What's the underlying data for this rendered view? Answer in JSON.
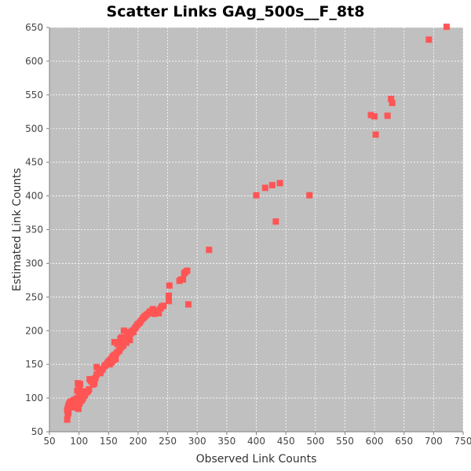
{
  "chart_data": {
    "type": "scatter",
    "title": "Scatter Links GAg_500s__F_8t8",
    "xlabel": "Observed Link Counts",
    "ylabel": "Estimated Link Counts",
    "xlim": [
      50,
      750
    ],
    "ylim": [
      50,
      650
    ],
    "xticks": [
      50,
      100,
      150,
      200,
      250,
      300,
      350,
      400,
      450,
      500,
      550,
      600,
      650,
      700,
      750
    ],
    "yticks": [
      50,
      100,
      150,
      200,
      250,
      300,
      350,
      400,
      450,
      500,
      550,
      600,
      650
    ],
    "grid": true,
    "legend": "none",
    "colors": {
      "plot_bg": "#c0c0c0",
      "grid": "#ffffff",
      "marker": "#ff5555"
    },
    "series": [
      {
        "points": [
          [
            80,
            68
          ],
          [
            81,
            75
          ],
          [
            82,
            78
          ],
          [
            80,
            82
          ],
          [
            81,
            85
          ],
          [
            82,
            88
          ],
          [
            83,
            90
          ],
          [
            84,
            92
          ],
          [
            85,
            93
          ],
          [
            86,
            95
          ],
          [
            88,
            94
          ],
          [
            90,
            96
          ],
          [
            92,
            97
          ],
          [
            95,
            99
          ],
          [
            98,
            100
          ],
          [
            100,
            102
          ],
          [
            102,
            104
          ],
          [
            104,
            106
          ],
          [
            106,
            108
          ],
          [
            108,
            110
          ],
          [
            97,
            88
          ],
          [
            99,
            90
          ],
          [
            101,
            92
          ],
          [
            100,
            95
          ],
          [
            103,
            96
          ],
          [
            98,
            122
          ],
          [
            100,
            118
          ],
          [
            102,
            121
          ],
          [
            101,
            114
          ],
          [
            97,
            111
          ],
          [
            90,
            86
          ],
          [
            93,
            88
          ],
          [
            96,
            91
          ],
          [
            99,
            84
          ],
          [
            105,
            97
          ],
          [
            107,
            100
          ],
          [
            110,
            104
          ],
          [
            112,
            108
          ],
          [
            115,
            110
          ],
          [
            117,
            113
          ],
          [
            118,
            128
          ],
          [
            120,
            126
          ],
          [
            122,
            124
          ],
          [
            124,
            120
          ],
          [
            126,
            122
          ],
          [
            128,
            130
          ],
          [
            130,
            135
          ],
          [
            130,
            146
          ],
          [
            133,
            140
          ],
          [
            136,
            137
          ],
          [
            138,
            141
          ],
          [
            140,
            143
          ],
          [
            143,
            147
          ],
          [
            145,
            149
          ],
          [
            148,
            152
          ],
          [
            150,
            154
          ],
          [
            152,
            156
          ],
          [
            155,
            159
          ],
          [
            157,
            162
          ],
          [
            160,
            164
          ],
          [
            152,
            150
          ],
          [
            155,
            153
          ],
          [
            158,
            156
          ],
          [
            162,
            158
          ],
          [
            163,
            166
          ],
          [
            165,
            168
          ],
          [
            168,
            170
          ],
          [
            170,
            174
          ],
          [
            172,
            176
          ],
          [
            175,
            178
          ],
          [
            160,
            183
          ],
          [
            165,
            180
          ],
          [
            170,
            188
          ],
          [
            172,
            190
          ],
          [
            175,
            185
          ],
          [
            178,
            187
          ],
          [
            180,
            190
          ],
          [
            182,
            192
          ],
          [
            185,
            193
          ],
          [
            188,
            196
          ],
          [
            176,
            200
          ],
          [
            180,
            182
          ],
          [
            183,
            198
          ],
          [
            186,
            186
          ],
          [
            190,
            200
          ],
          [
            192,
            198
          ],
          [
            194,
            203
          ],
          [
            196,
            205
          ],
          [
            198,
            208
          ],
          [
            200,
            210
          ],
          [
            203,
            212
          ],
          [
            205,
            215
          ],
          [
            208,
            218
          ],
          [
            210,
            220
          ],
          [
            212,
            222
          ],
          [
            215,
            224
          ],
          [
            218,
            226
          ],
          [
            220,
            228
          ],
          [
            222,
            229
          ],
          [
            225,
            232
          ],
          [
            228,
            225
          ],
          [
            230,
            230
          ],
          [
            233,
            228
          ],
          [
            235,
            226
          ],
          [
            238,
            233
          ],
          [
            240,
            236
          ],
          [
            243,
            237
          ],
          [
            252,
            244
          ],
          [
            252,
            252
          ],
          [
            253,
            267
          ],
          [
            270,
            274
          ],
          [
            273,
            276
          ],
          [
            276,
            276
          ],
          [
            278,
            285
          ],
          [
            280,
            287
          ],
          [
            283,
            289
          ],
          [
            285,
            239
          ],
          [
            320,
            320
          ],
          [
            400,
            401
          ],
          [
            415,
            412
          ],
          [
            427,
            416
          ],
          [
            433,
            362
          ],
          [
            440,
            419
          ],
          [
            490,
            401
          ],
          [
            594,
            520
          ],
          [
            600,
            518
          ],
          [
            602,
            491
          ],
          [
            622,
            519
          ],
          [
            628,
            544
          ],
          [
            630,
            538
          ],
          [
            692,
            632
          ],
          [
            722,
            651
          ]
        ]
      }
    ]
  }
}
